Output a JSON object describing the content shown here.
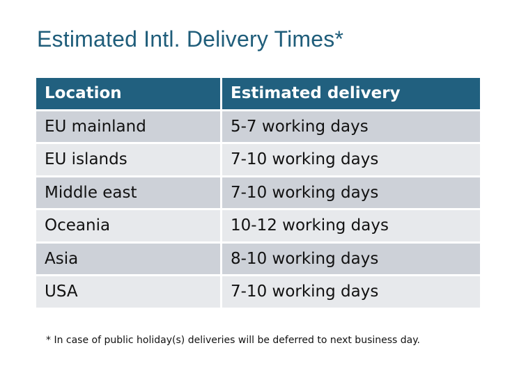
{
  "title": "Estimated Intl. Delivery Times*",
  "table": {
    "headers": [
      "Location",
      "Estimated delivery"
    ],
    "rows": [
      [
        "EU mainland",
        "5-7 working days"
      ],
      [
        "EU islands",
        "7-10 working days"
      ],
      [
        "Middle east",
        "7-10 working days"
      ],
      [
        "Oceania",
        "10-12 working days"
      ],
      [
        "Asia",
        "8-10 working days"
      ],
      [
        "USA",
        "7-10 working days"
      ]
    ]
  },
  "footnote": "* In case of public holiday(s) deliveries will be deferred to next business day.",
  "colors": {
    "header": "#21607f",
    "title": "#1f5d7a",
    "row_odd": "#cdd1d8",
    "row_even": "#e7e9ec"
  }
}
